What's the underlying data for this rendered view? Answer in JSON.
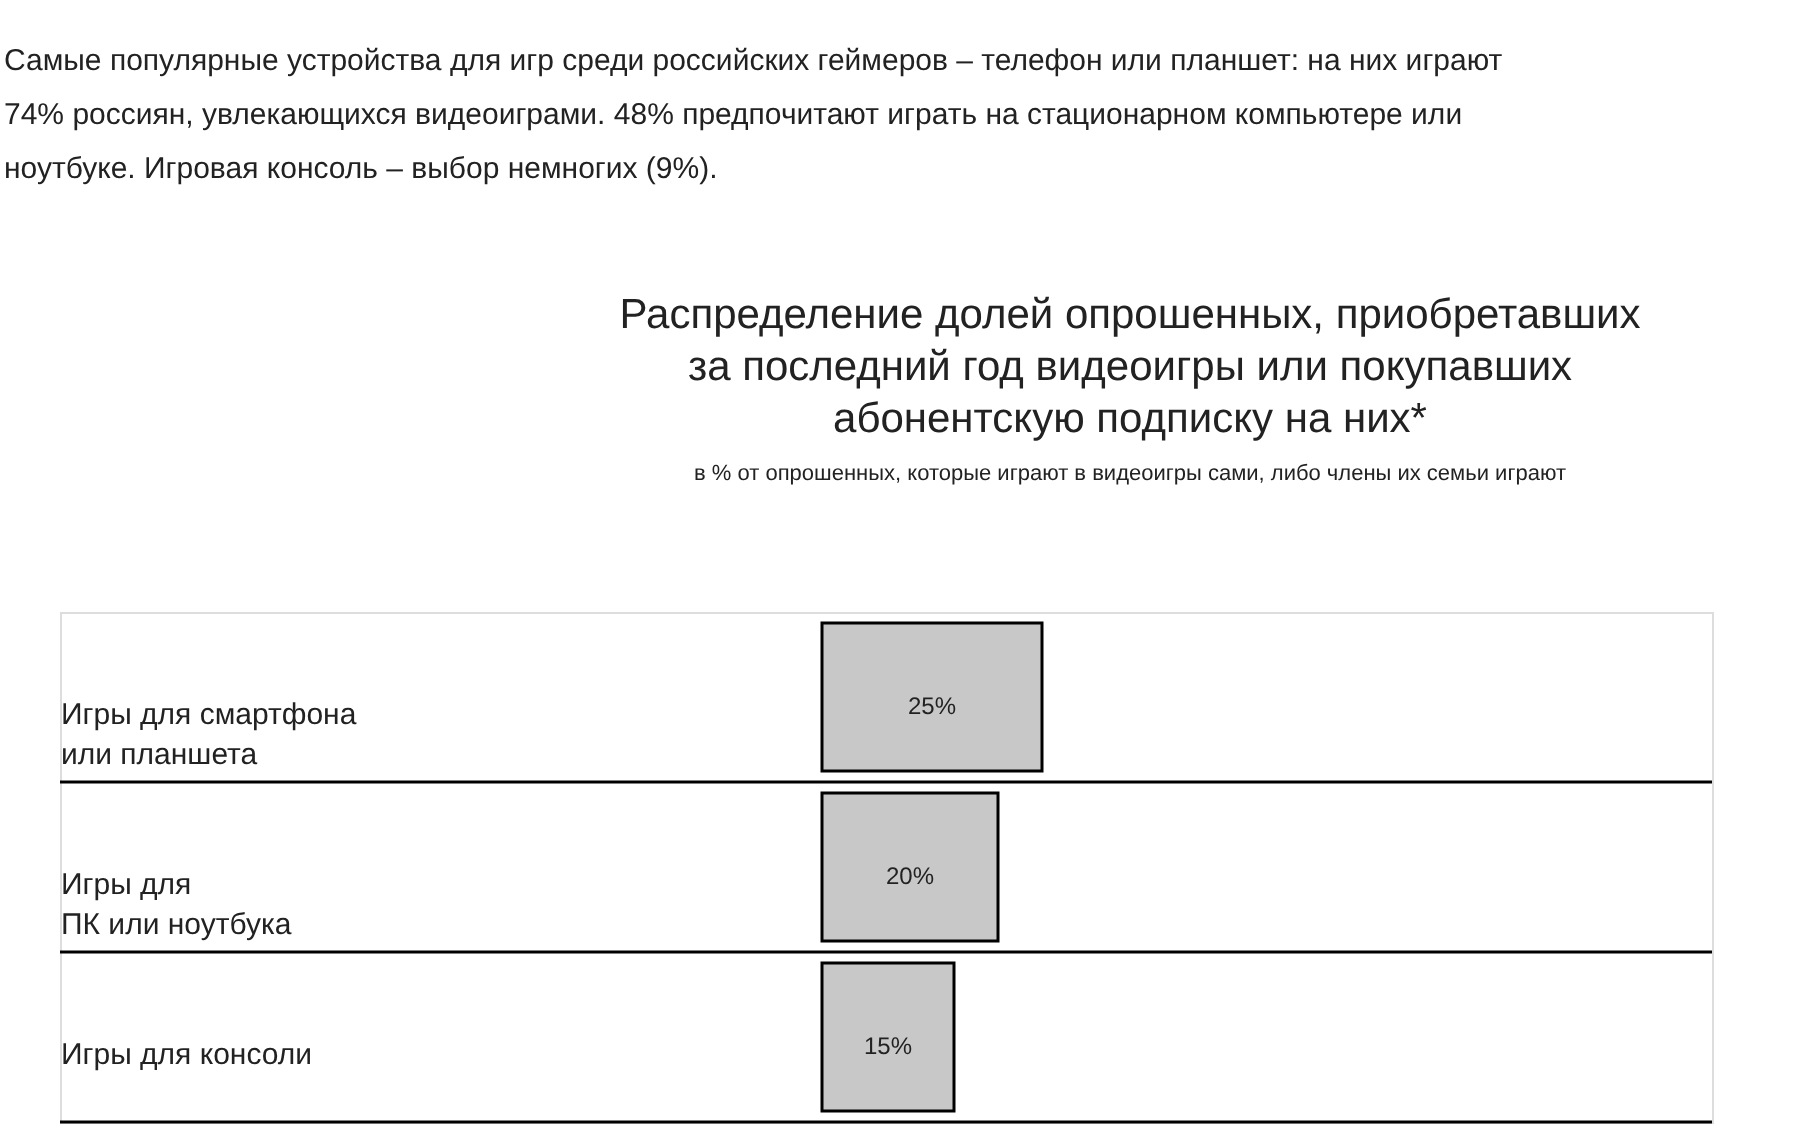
{
  "chart_data": {
    "type": "bar",
    "orientation": "horizontal",
    "title": "Распределение долей опрошенных, приобретавших за последний год видеоигры или покупавших абонентскую подписку на них*",
    "subtitle": "в % от опрошенных, которые играют в видеоигры сами, либо члены их семьи играют",
    "annotations": [
      "Самые популярные устройства для игр среди российских геймеров – телефон или планшет: на них играют 74% россиян, увлекающихся видеоиграми. 48% предпочитают играть на стационарном компьютере или ноутбуке. Игровая консоль – выбор немногих (9%)."
    ],
    "categories": [
      "Игры для смартфона\nили планшета",
      "Игры для\nПК или ноутбука",
      "Игры для консоли"
    ],
    "values": [
      25,
      20,
      15
    ],
    "value_labels": [
      "25%",
      "20%",
      "15%"
    ],
    "color": "#c8c8c8",
    "tick_labels": "y",
    "legend": false
  }
}
